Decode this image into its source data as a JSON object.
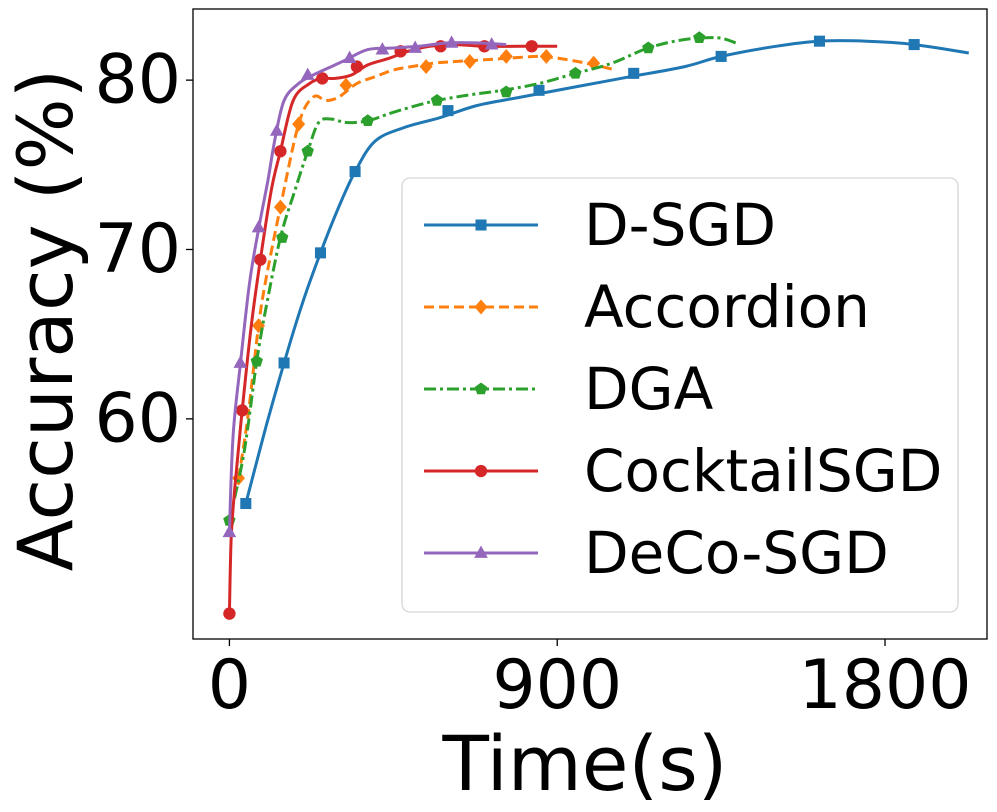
{
  "chart_data": {
    "type": "line",
    "title": "",
    "xlabel": "Time(s)",
    "ylabel": "Accuracy (%)",
    "xlim": [
      -100,
      2080
    ],
    "ylim": [
      47,
      84.2
    ],
    "xticks": [
      0,
      900,
      1800
    ],
    "xtick_labels": [
      "0",
      "900",
      "1800"
    ],
    "yticks": [
      60,
      70,
      80
    ],
    "ytick_labels": [
      "60",
      "70",
      "80"
    ],
    "grid": false,
    "legend_position": "lower-right",
    "series": [
      {
        "name": "D-SGD",
        "color": "#1f77b4",
        "dash": "solid",
        "marker": "square",
        "x": [
          45,
          100,
          150,
          200,
          250,
          300,
          345,
          400,
          480,
          580,
          680,
          800,
          950,
          1100,
          1250,
          1350,
          1500,
          1620,
          1750,
          1880,
          2030
        ],
        "y": [
          55.0,
          59.5,
          63.3,
          66.8,
          69.8,
          72.5,
          74.6,
          76.4,
          77.2,
          77.8,
          78.5,
          79.0,
          79.6,
          80.2,
          80.8,
          81.4,
          82.0,
          82.3,
          82.3,
          82.1,
          81.6
        ],
        "markers": [
          {
            "x": 45,
            "y": 55.0
          },
          {
            "x": 150,
            "y": 63.3
          },
          {
            "x": 250,
            "y": 69.8
          },
          {
            "x": 345,
            "y": 74.6
          },
          {
            "x": 600,
            "y": 78.2
          },
          {
            "x": 850,
            "y": 79.4
          },
          {
            "x": 1110,
            "y": 80.4
          },
          {
            "x": 1350,
            "y": 81.4
          },
          {
            "x": 1620,
            "y": 82.3
          },
          {
            "x": 1880,
            "y": 82.1
          }
        ]
      },
      {
        "name": "Accordion",
        "color": "#ff7f0e",
        "dash": "dashed",
        "marker": "diamond",
        "x": [
          25,
          50,
          80,
          100,
          140,
          190,
          230,
          265,
          300,
          350,
          400,
          450,
          500,
          560,
          620,
          700,
          770,
          850,
          900,
          980,
          1060
        ],
        "y": [
          56.5,
          60.0,
          65.5,
          68.2,
          72.5,
          77.4,
          79.0,
          78.8,
          79.0,
          79.8,
          80.2,
          80.6,
          80.8,
          81.0,
          81.1,
          81.2,
          81.3,
          81.4,
          81.3,
          81.0,
          80.6
        ],
        "markers": [
          {
            "x": 25,
            "y": 56.5
          },
          {
            "x": 80,
            "y": 65.5
          },
          {
            "x": 140,
            "y": 72.5
          },
          {
            "x": 190,
            "y": 77.4
          },
          {
            "x": 320,
            "y": 79.7
          },
          {
            "x": 540,
            "y": 80.8
          },
          {
            "x": 660,
            "y": 81.1
          },
          {
            "x": 760,
            "y": 81.4
          },
          {
            "x": 870,
            "y": 81.4
          },
          {
            "x": 1000,
            "y": 81.0
          }
        ]
      },
      {
        "name": "DGA",
        "color": "#2ca02c",
        "dash": "dashdot",
        "marker": "pentagon",
        "x": [
          0,
          40,
          75,
          100,
          140,
          180,
          215,
          245,
          280,
          320,
          380,
          450,
          550,
          650,
          750,
          850,
          950,
          1050,
          1150,
          1250,
          1340,
          1390
        ],
        "y": [
          54.0,
          58.0,
          63.4,
          66.5,
          70.7,
          73.5,
          75.8,
          77.5,
          77.7,
          77.5,
          77.6,
          78.1,
          78.7,
          79.1,
          79.4,
          79.8,
          80.4,
          81.0,
          81.9,
          82.4,
          82.5,
          82.2
        ],
        "markers": [
          {
            "x": 0,
            "y": 54.0
          },
          {
            "x": 75,
            "y": 63.4
          },
          {
            "x": 145,
            "y": 70.7
          },
          {
            "x": 215,
            "y": 75.8
          },
          {
            "x": 380,
            "y": 77.6
          },
          {
            "x": 570,
            "y": 78.8
          },
          {
            "x": 760,
            "y": 79.3
          },
          {
            "x": 950,
            "y": 80.4
          },
          {
            "x": 1150,
            "y": 81.9
          },
          {
            "x": 1290,
            "y": 82.5
          }
        ]
      },
      {
        "name": "CocktailSGD",
        "color": "#d62728",
        "dash": "solid",
        "marker": "circle",
        "x": [
          0,
          5,
          15,
          35,
          60,
          85,
          115,
          140,
          175,
          220,
          255,
          290,
          335,
          380,
          440,
          490,
          550,
          620,
          700,
          800,
          900
        ],
        "y": [
          48.5,
          53.0,
          56.0,
          60.5,
          65.5,
          69.4,
          73.5,
          75.8,
          78.8,
          79.8,
          80.1,
          80.1,
          80.3,
          80.9,
          81.3,
          81.7,
          82.0,
          82.1,
          82.0,
          82.0,
          82.0
        ],
        "markers": [
          {
            "x": 0,
            "y": 48.5
          },
          {
            "x": 35,
            "y": 60.5
          },
          {
            "x": 85,
            "y": 69.4
          },
          {
            "x": 140,
            "y": 75.8
          },
          {
            "x": 255,
            "y": 80.1
          },
          {
            "x": 350,
            "y": 80.8
          },
          {
            "x": 470,
            "y": 81.7
          },
          {
            "x": 580,
            "y": 82.0
          },
          {
            "x": 700,
            "y": 82.0
          },
          {
            "x": 830,
            "y": 82.0
          }
        ]
      },
      {
        "name": "DeCo-SGD",
        "color": "#9467bd",
        "dash": "solid",
        "marker": "triangle",
        "x": [
          0,
          10,
          30,
          55,
          80,
          105,
          125,
          150,
          190,
          230,
          280,
          320,
          380,
          450,
          520,
          600,
          680,
          760
        ],
        "y": [
          53.3,
          59.0,
          63.2,
          68.0,
          71.2,
          74.0,
          76.5,
          78.8,
          79.8,
          80.3,
          80.8,
          81.2,
          81.8,
          81.9,
          82.0,
          82.2,
          82.2,
          82.1
        ],
        "markers": [
          {
            "x": 0,
            "y": 53.3
          },
          {
            "x": 30,
            "y": 63.3
          },
          {
            "x": 80,
            "y": 71.3
          },
          {
            "x": 130,
            "y": 77.0
          },
          {
            "x": 215,
            "y": 80.3
          },
          {
            "x": 330,
            "y": 81.3
          },
          {
            "x": 420,
            "y": 81.8
          },
          {
            "x": 510,
            "y": 81.9
          },
          {
            "x": 610,
            "y": 82.2
          },
          {
            "x": 720,
            "y": 82.1
          }
        ]
      }
    ]
  }
}
